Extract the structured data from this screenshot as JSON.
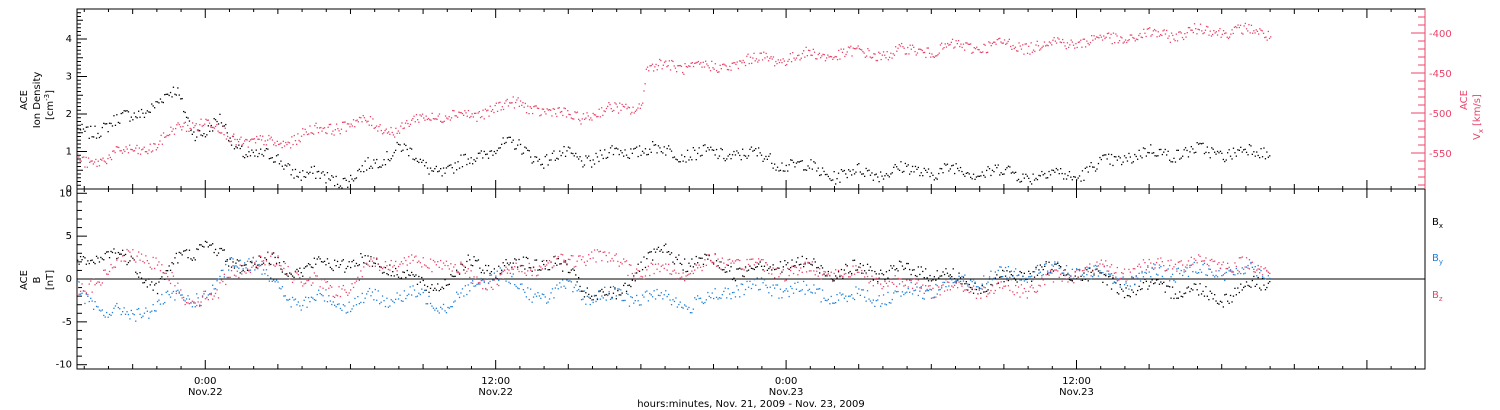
{
  "colors": {
    "axis": "#000000",
    "density": "#000000",
    "vx": "#e8446a",
    "bx": "#000000",
    "by": "#1f7fd8",
    "bz": "#e8446a"
  },
  "chart_data": [
    {
      "type": "scatter",
      "panel": "top",
      "ylabel_left": [
        "ACE",
        "Ion Density",
        "[cm",
        "-3",
        "]"
      ],
      "ylabel_right": [
        "ACE",
        "V",
        "x",
        "[km/s]"
      ],
      "ylim_left": [
        0,
        4.8
      ],
      "yticks_left": [
        "0",
        "1",
        "2",
        "3",
        "4"
      ],
      "ylim_right": [
        -595,
        -370
      ],
      "yticks_right": [
        "-400",
        "-450",
        "-500",
        "-550"
      ],
      "series": [
        {
          "axis": "left",
          "x_hours": [
            -5.5,
            -4,
            -3,
            -2,
            -1.2,
            -0.5,
            0,
            0.6,
            1.2,
            2,
            3,
            4,
            5,
            6,
            7,
            8,
            9,
            10,
            11,
            12,
            13,
            14,
            15,
            16,
            17,
            18,
            19,
            20,
            21,
            22,
            24,
            26,
            28,
            30,
            32,
            34,
            36,
            38,
            40,
            42,
            44
          ],
          "values": [
            1.5,
            1.7,
            2.0,
            2.3,
            2.6,
            1.6,
            1.5,
            1.8,
            1.2,
            0.9,
            0.8,
            0.4,
            0.3,
            0.3,
            0.7,
            1.2,
            0.6,
            0.5,
            0.8,
            1.2,
            1.1,
            0.8,
            0.9,
            0.8,
            1.0,
            1.1,
            1.0,
            1.0,
            0.9,
            1.0,
            0.7,
            0.4,
            0.5,
            0.5,
            0.5,
            0.4,
            0.4,
            0.9,
            1.0,
            1.0,
            1.0
          ]
        },
        {
          "axis": "right",
          "x_hours": [
            -6,
            -5,
            -4,
            -3,
            -2,
            -1,
            0,
            0.5,
            1,
            2,
            3,
            4,
            5,
            6,
            7,
            8,
            9,
            10,
            11,
            12,
            13,
            14,
            15,
            16,
            17,
            18,
            18.2,
            19,
            20,
            21,
            22,
            24,
            26,
            28,
            30,
            32,
            34,
            36,
            38,
            40,
            42,
            44
          ],
          "values": [
            -550,
            -560,
            -555,
            -545,
            -540,
            -515,
            -510,
            -520,
            -530,
            -535,
            -540,
            -525,
            -520,
            -510,
            -515,
            -520,
            -505,
            -500,
            -505,
            -490,
            -490,
            -495,
            -505,
            -500,
            -495,
            -490,
            -445,
            -440,
            -440,
            -445,
            -435,
            -430,
            -425,
            -425,
            -420,
            -415,
            -415,
            -410,
            -405,
            -400,
            -395,
            -400
          ]
        }
      ]
    },
    {
      "type": "scatter",
      "panel": "bottom",
      "ylabel_left": [
        "ACE",
        "B",
        "[nT]"
      ],
      "ylim": [
        -10.5,
        10.5
      ],
      "yticks": [
        "10",
        "5",
        "0",
        "-5",
        "-10"
      ],
      "legend": [
        {
          "name": "B",
          "sub": "x"
        },
        {
          "name": "B",
          "sub": "y"
        },
        {
          "name": "B",
          "sub": "z"
        }
      ],
      "series": [
        {
          "x_hours": [
            -6,
            -5,
            -4,
            -3,
            -2,
            -1,
            0,
            0.5,
            1,
            2,
            3,
            4,
            5,
            6,
            7,
            8,
            9,
            10,
            11,
            12,
            13,
            14,
            15,
            16,
            17,
            18,
            19,
            20,
            21,
            22,
            24,
            26,
            28,
            30,
            32,
            34,
            36,
            38,
            40,
            42,
            44
          ],
          "values": [
            1,
            2,
            3,
            2,
            -1,
            3,
            4,
            3,
            2,
            2,
            2,
            1,
            2,
            2,
            2,
            1,
            -1,
            0,
            2,
            1,
            2,
            2,
            1,
            -2,
            -2,
            2,
            3,
            2,
            2,
            1,
            2,
            1,
            1,
            1,
            -1,
            1,
            1,
            -1,
            -1,
            -2,
            0
          ]
        },
        {
          "x_hours": [
            -6,
            -5,
            -4,
            -3,
            -2,
            -1,
            0,
            0.5,
            1,
            2,
            3,
            4,
            5,
            6,
            7,
            8,
            9,
            10,
            11,
            12,
            13,
            14,
            15,
            16,
            17,
            18,
            19,
            20,
            21,
            22,
            24,
            26,
            28,
            30,
            32,
            34,
            36,
            38,
            40,
            42,
            44
          ],
          "values": [
            2,
            -2,
            -4,
            -4,
            -3,
            -2,
            -2,
            -1,
            2,
            2,
            -1,
            -3,
            -2,
            -3,
            -2,
            -2,
            -2,
            -3,
            -1,
            1,
            -1,
            -2,
            -1,
            -2,
            -2,
            -2,
            -2,
            -3,
            -2,
            -1,
            -1,
            -2,
            -2,
            -1,
            0,
            1,
            1,
            0,
            1,
            1,
            1
          ]
        },
        {
          "x_hours": [
            -6,
            -5,
            -4,
            -3,
            -2,
            -1,
            0,
            0.5,
            1,
            2,
            3,
            4,
            5,
            6,
            7,
            8,
            9,
            10,
            11,
            12,
            13,
            14,
            15,
            16,
            17,
            18,
            19,
            20,
            21,
            22,
            24,
            26,
            28,
            30,
            32,
            34,
            36,
            38,
            40,
            42,
            44
          ],
          "values": [
            -2,
            -1,
            1,
            3,
            2,
            -2,
            -2,
            -2,
            1,
            2,
            2,
            0,
            -1,
            -1,
            2,
            2,
            2,
            2,
            0,
            0,
            1,
            2,
            2,
            3,
            2,
            1,
            1,
            1,
            2,
            2,
            1,
            1,
            0,
            -1,
            -1,
            -1,
            1,
            1,
            2,
            2,
            1
          ]
        }
      ]
    }
  ],
  "xaxis": {
    "xlim_hours": [
      -5.3,
      50.4
    ],
    "major": [
      {
        "hour": 0,
        "time": "0:00",
        "date": "Nov.22"
      },
      {
        "hour": 12,
        "time": "12:00",
        "date": "Nov.22"
      },
      {
        "hour": 24,
        "time": "0:00",
        "date": "Nov.23"
      },
      {
        "hour": 36,
        "time": "12:00",
        "date": "Nov.23"
      }
    ],
    "title": "hours:minutes, Nov. 21, 2009 - Nov. 23, 2009"
  }
}
